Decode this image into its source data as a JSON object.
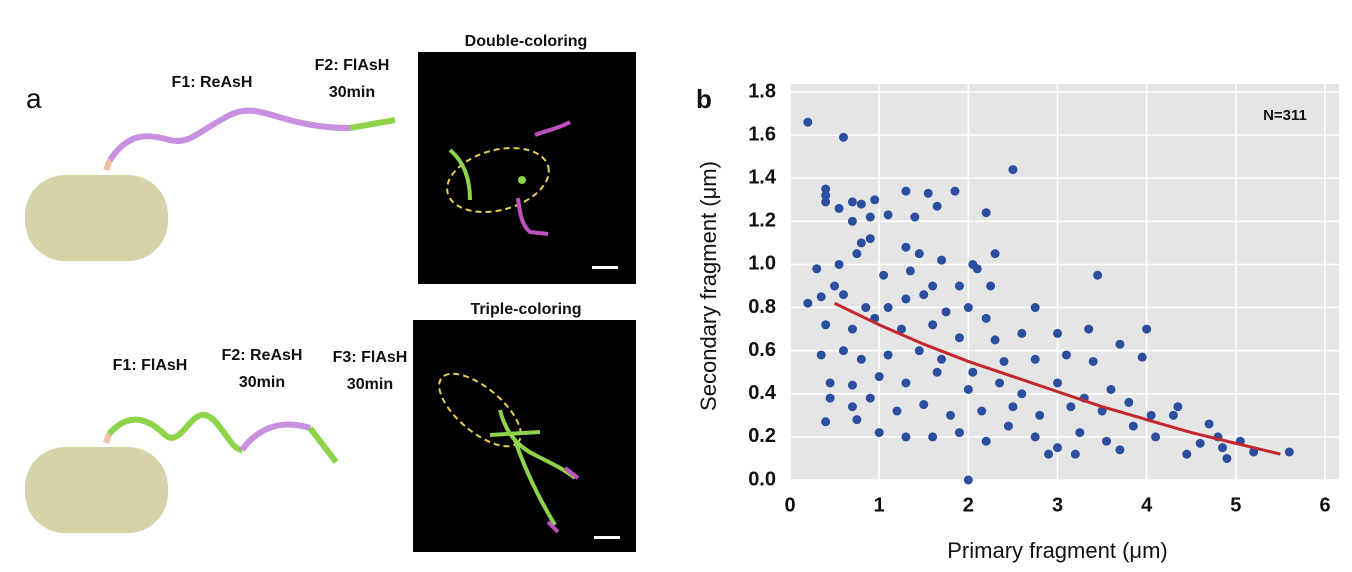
{
  "panel_a": {
    "label": "a",
    "top": {
      "f1": "F1: ReAsH",
      "f2": "F2: FlAsH",
      "f2_time": "30min",
      "image_title": "Double-coloring"
    },
    "bottom": {
      "f1": "F1: FlAsH",
      "f2": "F2: ReAsH",
      "f2_time": "30min",
      "f3": "F3: FlAsH",
      "f3_time": "30min",
      "image_title": "Triple-coloring"
    }
  },
  "chart_data": {
    "type": "scatter",
    "panel_label": "b",
    "annotation": "N=311",
    "x_label": "Primary fragment (μm)",
    "y_label": "Secondary fragment (μm)",
    "xlim": [
      0,
      6
    ],
    "ylim": [
      0,
      1.8
    ],
    "xticks": [
      0,
      1,
      2,
      3,
      4,
      5,
      6
    ],
    "yticks": [
      {
        "value": 0,
        "label": "0.0"
      },
      0.2,
      0.4,
      0.6,
      0.8,
      {
        "value": 1,
        "label": "1.0"
      },
      1.2,
      1.4,
      1.6,
      1.8
    ],
    "grid": true,
    "color": "#2b4f9e",
    "x": [
      0.2,
      0.6,
      2.5,
      0.4,
      0.4,
      0.4,
      0.55,
      0.7,
      0.8,
      0.95,
      1.3,
      1.55,
      1.85,
      1.65,
      1.4,
      2.2,
      0.7,
      0.9,
      1.1,
      0.8,
      0.9,
      1.3,
      1.45,
      1.7,
      2.05,
      2.3,
      2.1,
      0.3,
      0.55,
      0.75,
      1.05,
      1.35,
      1.6,
      1.9,
      2.25,
      3.45,
      0.2,
      0.35,
      0.5,
      0.6,
      0.85,
      1.1,
      1.3,
      1.5,
      1.75,
      2.0,
      2.2,
      2.75,
      0.4,
      0.7,
      0.95,
      1.25,
      1.6,
      1.9,
      2.3,
      2.6,
      3.0,
      3.35,
      4.0,
      3.7,
      0.35,
      0.6,
      0.8,
      1.1,
      1.45,
      1.7,
      2.05,
      2.4,
      2.75,
      3.1,
      3.4,
      3.95,
      0.45,
      0.7,
      1.0,
      1.3,
      1.65,
      2.0,
      2.35,
      2.6,
      3.0,
      3.3,
      3.6,
      4.3,
      0.45,
      0.7,
      0.9,
      1.2,
      1.5,
      1.8,
      2.15,
      2.5,
      2.8,
      3.15,
      3.5,
      3.8,
      4.05,
      4.35,
      0.4,
      0.75,
      1.0,
      1.3,
      1.6,
      1.9,
      2.2,
      2.45,
      2.75,
      3.0,
      3.25,
      3.55,
      3.85,
      4.1,
      4.45,
      4.7,
      4.8,
      4.85,
      4.9,
      5.05,
      5.2,
      5.6,
      2.0,
      3.2,
      3.7,
      4.6,
      2.9
    ],
    "values": [
      1.66,
      1.59,
      1.44,
      1.35,
      1.32,
      1.29,
      1.26,
      1.29,
      1.28,
      1.3,
      1.34,
      1.33,
      1.34,
      1.27,
      1.22,
      1.24,
      1.2,
      1.22,
      1.23,
      1.1,
      1.12,
      1.08,
      1.05,
      1.02,
      1.0,
      1.05,
      0.98,
      0.98,
      1.0,
      1.05,
      0.95,
      0.97,
      0.9,
      0.9,
      0.9,
      0.95,
      0.82,
      0.85,
      0.9,
      0.86,
      0.8,
      0.8,
      0.84,
      0.86,
      0.78,
      0.8,
      0.75,
      0.8,
      0.72,
      0.7,
      0.75,
      0.7,
      0.72,
      0.66,
      0.65,
      0.68,
      0.68,
      0.7,
      0.7,
      0.63,
      0.58,
      0.6,
      0.56,
      0.58,
      0.6,
      0.56,
      0.5,
      0.55,
      0.56,
      0.58,
      0.55,
      0.57,
      0.45,
      0.44,
      0.48,
      0.45,
      0.5,
      0.42,
      0.45,
      0.4,
      0.45,
      0.38,
      0.42,
      0.3,
      0.38,
      0.34,
      0.38,
      0.32,
      0.35,
      0.3,
      0.32,
      0.34,
      0.3,
      0.34,
      0.32,
      0.36,
      0.3,
      0.34,
      0.27,
      0.28,
      0.22,
      0.2,
      0.2,
      0.22,
      0.18,
      0.25,
      0.2,
      0.15,
      0.22,
      0.18,
      0.25,
      0.2,
      0.12,
      0.26,
      0.2,
      0.15,
      0.1,
      0.18,
      0.13,
      0.13,
      0.0,
      0.12,
      0.14,
      0.17,
      0.12
    ],
    "fit": {
      "color": "#c4262e",
      "x": [
        0.5,
        1,
        1.5,
        2,
        2.5,
        3,
        3.5,
        4,
        4.5,
        5,
        5.5
      ],
      "values": [
        0.82,
        0.72,
        0.63,
        0.55,
        0.48,
        0.41,
        0.34,
        0.28,
        0.22,
        0.17,
        0.12
      ]
    }
  }
}
